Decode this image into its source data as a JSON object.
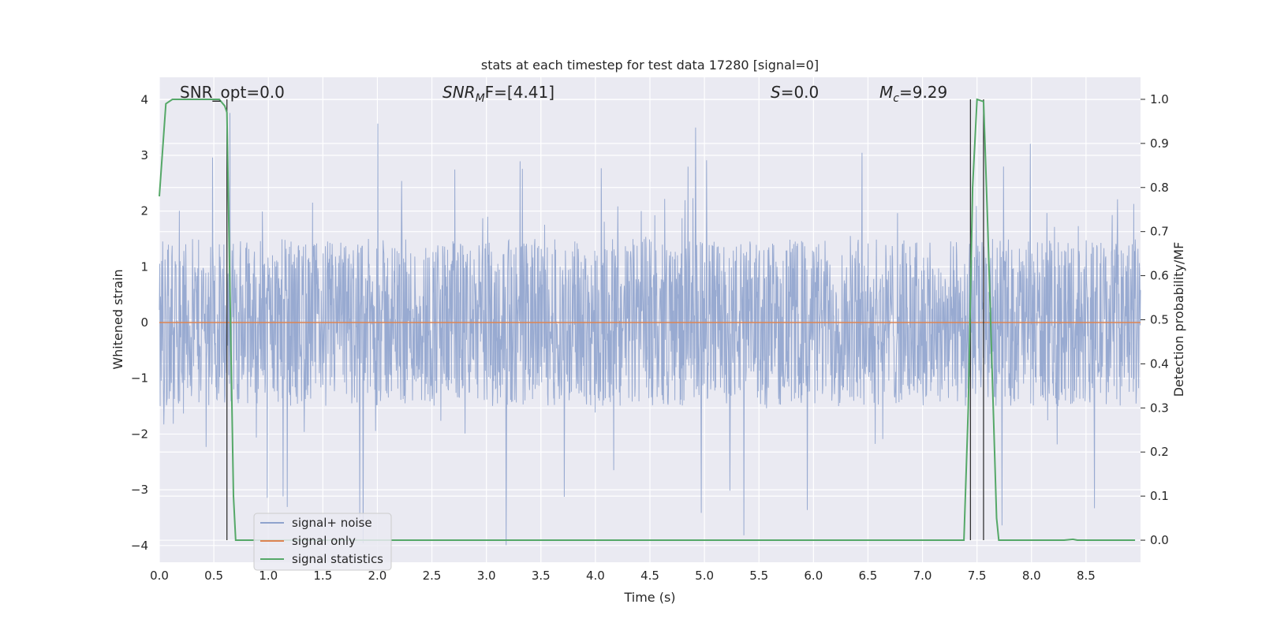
{
  "chart_data": {
    "type": "line",
    "title": "stats at each timestep for test data 17280 [signal=0]",
    "xlabel": "Time (s)",
    "ylabel_left": "Whitened strain",
    "ylabel_right": "Detection probability/MF",
    "xlim": [
      0,
      9.0
    ],
    "ylim_left": [
      -4.3,
      4.4
    ],
    "ylim_right": [
      -0.05,
      1.05
    ],
    "x_ticks": [
      0.0,
      0.5,
      1.0,
      1.5,
      2.0,
      2.5,
      3.0,
      3.5,
      4.0,
      4.5,
      5.0,
      5.5,
      6.0,
      6.5,
      7.0,
      7.5,
      8.0,
      8.5
    ],
    "x_tick_labels": [
      "0.0",
      "0.5",
      "1.0",
      "1.5",
      "2.0",
      "2.5",
      "3.0",
      "3.5",
      "4.0",
      "4.5",
      "5.0",
      "5.5",
      "6.0",
      "6.5",
      "7.0",
      "7.5",
      "8.0",
      "8.5"
    ],
    "y_left_ticks": [
      4,
      3,
      2,
      1,
      0,
      -1,
      -2,
      -3,
      -4
    ],
    "y_left_tick_labels": [
      "4",
      "3",
      "2",
      "1",
      "0",
      "−1",
      "−2",
      "−3",
      "−4"
    ],
    "y_right_ticks": [
      1.0,
      0.9,
      0.8,
      0.7,
      0.6,
      0.5,
      0.4,
      0.3,
      0.2,
      0.1,
      0.0
    ],
    "y_right_tick_labels": [
      "1.0",
      "0.9",
      "0.8",
      "0.7",
      "0.6",
      "0.5",
      "0.4",
      "0.3",
      "0.2",
      "0.1",
      "0.0"
    ],
    "grid": true,
    "legend_placement": "lower-left",
    "annotations": {
      "snr_opt": "SNR_opt=0.0",
      "snr_mf_main": "SNR",
      "snr_mf_sub": "M",
      "snr_mf_rest": "F=[4.41]",
      "s_main": "S",
      "s_rest": "=0.0",
      "mc_main": "M",
      "mc_sub": "c",
      "mc_rest": "=9.29"
    },
    "vertical_lines_x": [
      0.62,
      7.44,
      7.56
    ],
    "series": [
      {
        "name": "signal+ noise",
        "color": "#8fa3cd",
        "axis": "left",
        "note_values": "noise envelope approx +/-1.5 with spikes up to about 4",
        "envelope": {
          "core": 1.5,
          "max_spike": 4.0
        }
      },
      {
        "name": "signal only",
        "color": "#dd8452",
        "axis": "left",
        "x": [
          0,
          9.0
        ],
        "y": [
          0,
          0
        ]
      },
      {
        "name": "signal statistics",
        "color": "#55a868",
        "axis": "right",
        "x": [
          0.0,
          0.06,
          0.12,
          0.2,
          0.3,
          0.4,
          0.5,
          0.55,
          0.6,
          0.62,
          0.68,
          0.7,
          1.0,
          2.0,
          3.0,
          4.0,
          5.0,
          6.0,
          7.0,
          7.38,
          7.42,
          7.46,
          7.5,
          7.56,
          7.6,
          7.68,
          7.7,
          8.0,
          8.3,
          8.38,
          8.42,
          8.6,
          8.95
        ],
        "y": [
          0.78,
          0.99,
          1.0,
          1.0,
          1.0,
          1.0,
          1.0,
          1.0,
          0.985,
          0.97,
          0.1,
          0.0,
          0.0,
          0.0,
          0.0,
          0.0,
          0.0,
          0.0,
          0.0,
          0.0,
          0.3,
          0.8,
          1.0,
          0.995,
          0.7,
          0.05,
          0.0,
          0.0,
          0.0,
          0.002,
          0.0,
          0.0,
          0.0
        ]
      }
    ]
  }
}
